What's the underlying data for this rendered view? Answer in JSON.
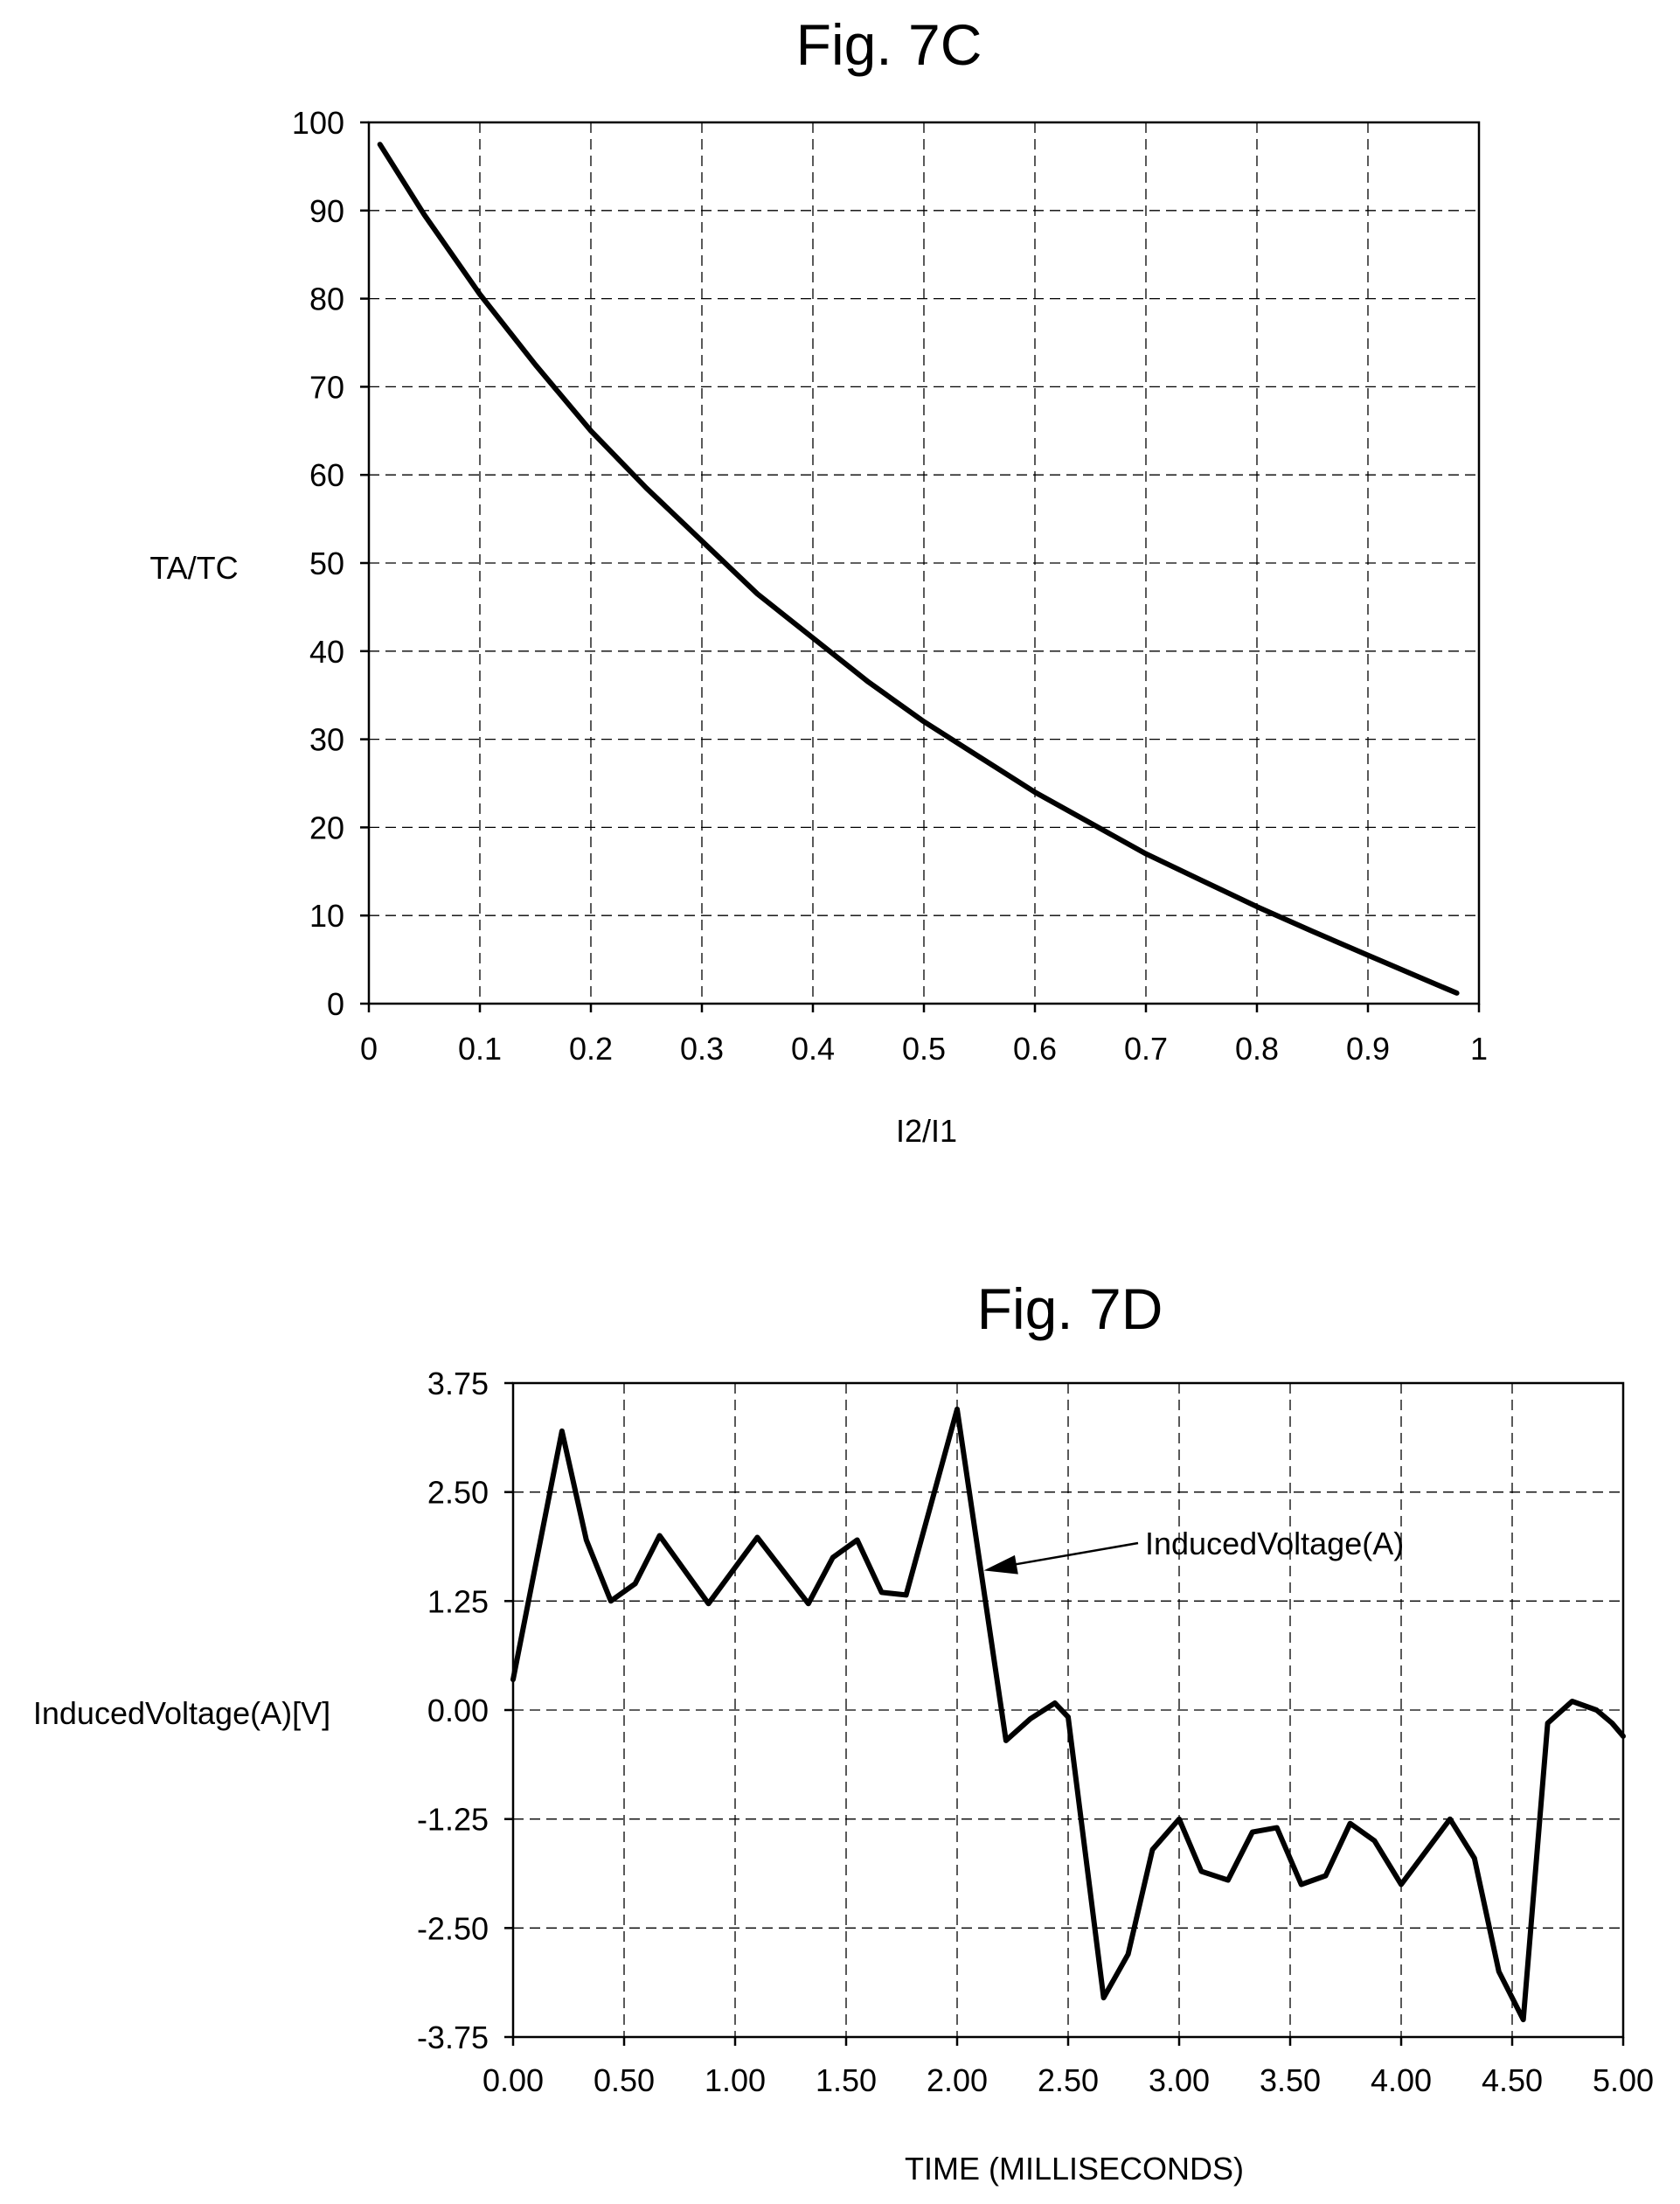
{
  "chart_data": [
    {
      "type": "line",
      "title": "Fig. 7C",
      "xlabel": "I2/I1",
      "ylabel": "TA/TC",
      "xlim": [
        0,
        1
      ],
      "ylim": [
        0,
        100
      ],
      "grid": true,
      "x_ticks": [
        "0",
        "0.1",
        "0.2",
        "0.3",
        "0.4",
        "0.5",
        "0.6",
        "0.7",
        "0.8",
        "0.9",
        "1"
      ],
      "y_ticks": [
        "0",
        "10",
        "20",
        "30",
        "40",
        "50",
        "60",
        "70",
        "80",
        "90",
        "100"
      ],
      "series": [
        {
          "x": [
            0.01,
            0.05,
            0.1,
            0.15,
            0.2,
            0.25,
            0.3,
            0.35,
            0.4,
            0.45,
            0.5,
            0.55,
            0.6,
            0.65,
            0.7,
            0.75,
            0.8,
            0.85,
            0.9,
            0.95,
            0.98
          ],
          "y": [
            97.5,
            89.5,
            80.5,
            72.5,
            65,
            58.5,
            52.5,
            46.5,
            41.5,
            36.5,
            32,
            28,
            24,
            20.5,
            17,
            14,
            11,
            8.2,
            5.5,
            2.8,
            1.2
          ]
        }
      ]
    },
    {
      "type": "line",
      "title": "Fig. 7D",
      "xlabel": "TIME (MILLISECONDS)",
      "ylabel": "InducedVoltage(A)[V]",
      "xlim": [
        0,
        5
      ],
      "ylim": [
        -3.75,
        3.75
      ],
      "grid": true,
      "x_ticks": [
        "0.00",
        "0.50",
        "1.00",
        "1.50",
        "2.00",
        "2.50",
        "3.00",
        "3.50",
        "4.00",
        "4.50",
        "5.00"
      ],
      "y_ticks": [
        "3.75",
        "2.50",
        "1.25",
        "0.00",
        "-1.25",
        "-2.50",
        "-3.75"
      ],
      "annotation": {
        "text": "InducedVoltage(A)",
        "x": 2.12,
        "y": 1.6
      },
      "series": [
        {
          "x": [
            0.0,
            0.22,
            0.33,
            0.44,
            0.55,
            0.66,
            0.88,
            1.1,
            1.33,
            1.44,
            1.55,
            1.66,
            1.77,
            2.0,
            2.22,
            2.33,
            2.44,
            2.5,
            2.66,
            2.77,
            2.88,
            3.0,
            3.1,
            3.22,
            3.33,
            3.44,
            3.55,
            3.66,
            3.77,
            3.88,
            4.0,
            4.22,
            4.33,
            4.44,
            4.55,
            4.66,
            4.77,
            4.88,
            4.95,
            5.0
          ],
          "y": [
            0.35,
            3.2,
            1.95,
            1.25,
            1.45,
            2.0,
            1.22,
            1.98,
            1.22,
            1.75,
            1.95,
            1.35,
            1.32,
            3.45,
            -0.35,
            -0.1,
            0.08,
            -0.08,
            -3.3,
            -2.8,
            -1.6,
            -1.25,
            -1.85,
            -1.95,
            -1.4,
            -1.35,
            -2.0,
            -1.9,
            -1.3,
            -1.5,
            -2.0,
            -1.25,
            -1.7,
            -3.0,
            -3.55,
            -0.15,
            0.1,
            0.0,
            -0.15,
            -0.3
          ]
        }
      ]
    }
  ]
}
